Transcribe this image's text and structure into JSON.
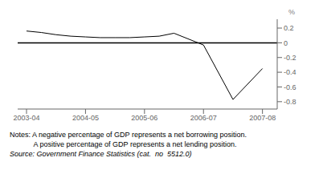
{
  "chart_data": {
    "type": "line",
    "x": [
      0,
      0.5,
      1,
      1.5,
      2,
      2.5,
      3,
      3.5,
      4,
      4.5,
      5,
      6,
      7,
      8
    ],
    "values": [
      0.16,
      0.14,
      0.11,
      0.09,
      0.08,
      0.07,
      0.07,
      0.07,
      0.08,
      0.09,
      0.13,
      -0.03,
      -0.77,
      -0.35
    ],
    "color": "#000000",
    "line_style": "solid",
    "xlim": [
      -0.3,
      8.5
    ],
    "xticks": [
      {
        "value": 0,
        "label": "2003-04"
      },
      {
        "value": 2,
        "label": "2004-05"
      },
      {
        "value": 4,
        "label": "2005-06"
      },
      {
        "value": 6,
        "label": "2006-07"
      },
      {
        "value": 8,
        "label": "2007-08"
      }
    ],
    "ylim": [
      -0.9,
      0.32
    ],
    "yticks": [
      0.2,
      0,
      -0.2,
      -0.4,
      -0.6,
      -0.8
    ],
    "ylabel": "%",
    "hlines": [
      0
    ],
    "notes": [
      "Notes: A negative percentage of GDP represents a net borrowing position.",
      "            A positive percentage of GDP represents a net lending position."
    ],
    "source": "Source: Government Finance Statistics (cat.  no  5512.0)",
    "grid": false
  }
}
